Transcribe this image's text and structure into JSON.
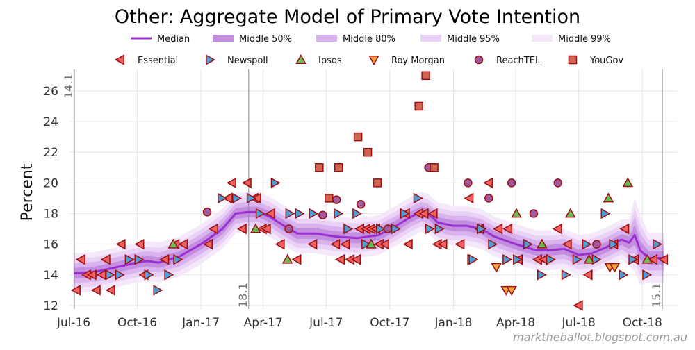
{
  "chart_data": {
    "type": "line",
    "title": "Other: Aggregate Model of Primary Vote Intention",
    "xlabel": "",
    "ylabel": "Percent",
    "xlim": [
      "2016-06-25",
      "2018-11-21"
    ],
    "ylim": [
      11.77,
      27.4
    ],
    "grid": true,
    "x_ticks": [
      {
        "date": "2016-07-01",
        "label": "Jul-16"
      },
      {
        "date": "2016-10-01",
        "label": "Oct-16"
      },
      {
        "date": "2017-01-01",
        "label": "Jan-17"
      },
      {
        "date": "2017-04-01",
        "label": "Apr-17"
      },
      {
        "date": "2017-07-01",
        "label": "Jul-17"
      },
      {
        "date": "2017-10-01",
        "label": "Oct-17"
      },
      {
        "date": "2018-01-01",
        "label": "Jan-18"
      },
      {
        "date": "2018-04-01",
        "label": "Apr-18"
      },
      {
        "date": "2018-07-01",
        "label": "Jul-18"
      },
      {
        "date": "2018-10-01",
        "label": "Oct-18"
      }
    ],
    "y_ticks": [
      12,
      14,
      16,
      18,
      20,
      22,
      24,
      26
    ],
    "reference_lines": [
      {
        "date": "2016-07-02",
        "label": "14.1",
        "label_pos": "top"
      },
      {
        "date": "2017-03-11",
        "label": "18.1",
        "label_pos": "bottom"
      },
      {
        "date": "2018-10-30",
        "label": "15.1",
        "label_pos": "bottom"
      }
    ],
    "legend_placement": "top",
    "model": {
      "legend": [
        {
          "name": "Median",
          "kind": "line",
          "color": "#9b30d0"
        },
        {
          "name": "Middle 50%",
          "kind": "band",
          "color": "#c48ee0",
          "half_width": 0.35
        },
        {
          "name": "Middle 80%",
          "kind": "band",
          "color": "#d9b3ee",
          "half_width": 0.65
        },
        {
          "name": "Middle 95%",
          "kind": "band",
          "color": "#e9d2f5",
          "half_width": 0.95
        },
        {
          "name": "Middle 99%",
          "kind": "band",
          "color": "#f4e8fa",
          "half_width": 1.3
        }
      ],
      "median": [
        [
          "2016-07-01",
          14.1
        ],
        [
          "2016-08-01",
          14.2
        ],
        [
          "2016-09-01",
          14.5
        ],
        [
          "2016-10-01",
          14.8
        ],
        [
          "2016-10-15",
          14.9
        ],
        [
          "2016-11-01",
          14.8
        ],
        [
          "2016-12-01",
          15.2
        ],
        [
          "2017-01-01",
          16.0
        ],
        [
          "2017-02-01",
          17.0
        ],
        [
          "2017-02-20",
          18.0
        ],
        [
          "2017-03-10",
          18.1
        ],
        [
          "2017-03-25",
          18.1
        ],
        [
          "2017-04-10",
          17.8
        ],
        [
          "2017-05-01",
          17.2
        ],
        [
          "2017-05-20",
          16.7
        ],
        [
          "2017-06-15",
          16.7
        ],
        [
          "2017-07-15",
          16.5
        ],
        [
          "2017-08-15",
          16.4
        ],
        [
          "2017-09-15",
          16.6
        ],
        [
          "2017-10-10",
          17.2
        ],
        [
          "2017-11-01",
          17.8
        ],
        [
          "2017-11-15",
          18.1
        ],
        [
          "2017-11-25",
          18.0
        ],
        [
          "2017-12-10",
          17.4
        ],
        [
          "2018-01-01",
          17.2
        ],
        [
          "2018-01-20",
          17.2
        ],
        [
          "2018-02-10",
          17.0
        ],
        [
          "2018-03-01",
          16.5
        ],
        [
          "2018-04-01",
          16.0
        ],
        [
          "2018-05-01",
          15.6
        ],
        [
          "2018-05-20",
          15.6
        ],
        [
          "2018-06-10",
          15.7
        ],
        [
          "2018-07-01",
          15.3
        ],
        [
          "2018-07-20",
          15.4
        ],
        [
          "2018-08-10",
          15.8
        ],
        [
          "2018-09-01",
          16.3
        ],
        [
          "2018-09-12",
          16.1
        ],
        [
          "2018-09-20",
          16.6
        ],
        [
          "2018-09-28",
          15.6
        ],
        [
          "2018-10-10",
          15.1
        ],
        [
          "2018-11-01",
          15.1
        ]
      ]
    },
    "polls": [
      {
        "name": "Essential",
        "marker": "triangle-left",
        "color": "#f06262",
        "points": [
          [
            "2016-07-05",
            13
          ],
          [
            "2016-07-12",
            15
          ],
          [
            "2016-07-20",
            14
          ],
          [
            "2016-07-28",
            14
          ],
          [
            "2016-08-03",
            13
          ],
          [
            "2016-08-11",
            14
          ],
          [
            "2016-08-17",
            15
          ],
          [
            "2016-08-24",
            13
          ],
          [
            "2016-09-08",
            16
          ],
          [
            "2016-10-05",
            16
          ],
          [
            "2016-10-11",
            14
          ],
          [
            "2016-11-10",
            15
          ],
          [
            "2016-11-25",
            16
          ],
          [
            "2016-12-07",
            16
          ],
          [
            "2017-01-12",
            16
          ],
          [
            "2017-01-20",
            17
          ],
          [
            "2017-02-09",
            19
          ],
          [
            "2017-02-15",
            20
          ],
          [
            "2017-03-02",
            17
          ],
          [
            "2017-03-09",
            20
          ],
          [
            "2017-03-19",
            19
          ],
          [
            "2017-03-23",
            19
          ],
          [
            "2017-03-31",
            17
          ],
          [
            "2017-04-06",
            17
          ],
          [
            "2017-04-12",
            18
          ],
          [
            "2017-04-26",
            16
          ],
          [
            "2017-05-20",
            15
          ],
          [
            "2017-06-12",
            16
          ],
          [
            "2017-07-15",
            16
          ],
          [
            "2017-07-22",
            15
          ],
          [
            "2017-07-29",
            16
          ],
          [
            "2017-08-05",
            15
          ],
          [
            "2017-08-14",
            15
          ],
          [
            "2017-08-19",
            17
          ],
          [
            "2017-08-28",
            17
          ],
          [
            "2017-09-04",
            17
          ],
          [
            "2017-09-11",
            17
          ],
          [
            "2017-09-16",
            16
          ],
          [
            "2017-09-24",
            16
          ],
          [
            "2017-10-24",
            18
          ],
          [
            "2017-10-28",
            16
          ],
          [
            "2017-11-12",
            18
          ],
          [
            "2017-11-20",
            18
          ],
          [
            "2017-12-03",
            18
          ],
          [
            "2017-12-09",
            16
          ],
          [
            "2017-12-17",
            16
          ],
          [
            "2018-01-11",
            16
          ],
          [
            "2018-01-24",
            19
          ],
          [
            "2018-02-08",
            17
          ],
          [
            "2018-02-21",
            20
          ],
          [
            "2018-03-07",
            17
          ],
          [
            "2018-03-21",
            17
          ],
          [
            "2018-04-05",
            15
          ],
          [
            "2018-05-03",
            15
          ],
          [
            "2018-05-12",
            15
          ],
          [
            "2018-06-01",
            17
          ],
          [
            "2018-06-15",
            16
          ],
          [
            "2018-07-01",
            12
          ],
          [
            "2018-07-15",
            14
          ],
          [
            "2018-08-21",
            16
          ],
          [
            "2018-09-06",
            17
          ],
          [
            "2018-09-20",
            15
          ],
          [
            "2018-10-17",
            15
          ],
          [
            "2018-11-01",
            15
          ]
        ]
      },
      {
        "name": "Newspoll",
        "marker": "triangle-right",
        "color": "#4f9fd6",
        "points": [
          [
            "2016-08-22",
            14
          ],
          [
            "2016-09-05",
            14
          ],
          [
            "2016-09-19",
            15
          ],
          [
            "2016-10-03",
            15
          ],
          [
            "2016-10-17",
            14
          ],
          [
            "2016-10-30",
            13
          ],
          [
            "2016-11-15",
            14
          ],
          [
            "2016-11-28",
            15
          ],
          [
            "2017-01-31",
            19
          ],
          [
            "2017-02-21",
            19
          ],
          [
            "2017-03-14",
            19
          ],
          [
            "2017-03-27",
            18
          ],
          [
            "2017-04-18",
            20
          ],
          [
            "2017-05-09",
            18
          ],
          [
            "2017-05-23",
            18
          ],
          [
            "2017-06-12",
            18
          ],
          [
            "2017-07-18",
            18
          ],
          [
            "2017-08-01",
            17
          ],
          [
            "2017-08-14",
            18
          ],
          [
            "2017-08-27",
            16
          ],
          [
            "2017-09-17",
            17
          ],
          [
            "2017-10-09",
            17
          ],
          [
            "2017-10-22",
            18
          ],
          [
            "2017-11-10",
            19
          ],
          [
            "2017-11-27",
            17
          ],
          [
            "2017-12-11",
            17
          ],
          [
            "2018-01-27",
            15
          ],
          [
            "2018-01-29",
            15
          ],
          [
            "2018-02-10",
            17
          ],
          [
            "2018-02-26",
            16
          ],
          [
            "2018-03-19",
            15
          ],
          [
            "2018-04-03",
            15
          ],
          [
            "2018-04-18",
            16
          ],
          [
            "2018-05-08",
            14
          ],
          [
            "2018-05-21",
            15
          ],
          [
            "2018-06-12",
            14
          ],
          [
            "2018-06-28",
            15
          ],
          [
            "2018-07-12",
            16
          ],
          [
            "2018-07-26",
            15
          ],
          [
            "2018-08-08",
            18
          ],
          [
            "2018-08-20",
            16
          ],
          [
            "2018-09-03",
            14
          ],
          [
            "2018-09-17",
            15
          ],
          [
            "2018-10-07",
            14
          ],
          [
            "2018-10-22",
            16
          ]
        ]
      },
      {
        "name": "Ipsos",
        "marker": "triangle-up",
        "color": "#6dbb55",
        "points": [
          [
            "2016-11-22",
            16
          ],
          [
            "2017-03-21",
            17
          ],
          [
            "2017-05-06",
            15
          ],
          [
            "2017-09-04",
            16
          ],
          [
            "2018-04-02",
            18
          ],
          [
            "2018-05-09",
            16
          ],
          [
            "2018-06-19",
            18
          ],
          [
            "2018-07-16",
            15
          ],
          [
            "2018-08-13",
            19
          ],
          [
            "2018-09-10",
            20
          ],
          [
            "2018-10-08",
            15
          ]
        ]
      },
      {
        "name": "Roy Morgan",
        "marker": "triangle-down",
        "color": "#f5a243",
        "points": [
          [
            "2018-03-04",
            14.5
          ],
          [
            "2018-03-18",
            13
          ],
          [
            "2018-03-26",
            13
          ],
          [
            "2018-08-15",
            14.5
          ],
          [
            "2018-08-22",
            14.5
          ]
        ]
      },
      {
        "name": "ReachTEL",
        "marker": "circle",
        "color": "#a05a9e",
        "points": [
          [
            "2017-01-10",
            18.1
          ],
          [
            "2017-05-08",
            17
          ],
          [
            "2017-06-26",
            17.9
          ],
          [
            "2017-07-16",
            18.9
          ],
          [
            "2017-08-20",
            18.6
          ],
          [
            "2017-09-28",
            17
          ],
          [
            "2017-11-26",
            21
          ],
          [
            "2018-01-22",
            20
          ],
          [
            "2018-02-21",
            19
          ],
          [
            "2018-03-26",
            20
          ],
          [
            "2018-04-27",
            18
          ],
          [
            "2018-06-01",
            20
          ],
          [
            "2018-07-27",
            16
          ]
        ]
      },
      {
        "name": "YouGov",
        "marker": "square",
        "color": "#d06552",
        "points": [
          [
            "2017-06-21",
            21
          ],
          [
            "2017-07-05",
            19
          ],
          [
            "2017-07-19",
            21
          ],
          [
            "2017-08-16",
            23
          ],
          [
            "2017-08-30",
            22
          ],
          [
            "2017-09-13",
            20
          ],
          [
            "2017-11-12",
            25
          ],
          [
            "2017-11-22",
            27
          ],
          [
            "2017-12-04",
            21
          ]
        ]
      }
    ],
    "marker_edge_color": "#9a0e0e"
  },
  "watermark": "marktheballot.blogspot.com.au"
}
